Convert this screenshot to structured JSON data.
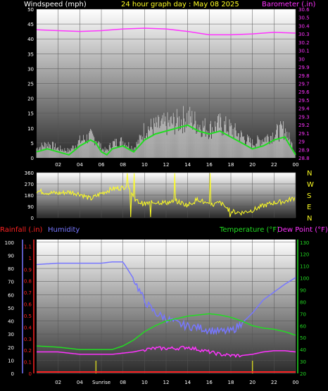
{
  "colors": {
    "background": "#000000",
    "windspeed": "#ffffff",
    "windgust": "#dddddd",
    "wind_avg": "#22dd22",
    "barometer": "#ff33ff",
    "direction": "#ffff22",
    "rainfall": "#ff2222",
    "humidity": "#7777ff",
    "temperature": "#22dd22",
    "dewpoint": "#ff33ff",
    "sunrise_line": "#cccc22",
    "title": "#ffff22"
  },
  "chart_data": [
    {
      "type": "line",
      "title": "24 hour graph day : May 08 2025",
      "ylabel": "Windspeed (mph)",
      "y2label": "Barometer (.in)",
      "x_tick_labels": [
        "02",
        "04",
        "06",
        "08",
        "10",
        "12",
        "14",
        "16",
        "18",
        "20",
        "22",
        "00"
      ],
      "y_tick_labels": [
        "0",
        "5",
        "10",
        "15",
        "20",
        "25",
        "30",
        "35",
        "40",
        "45",
        "50"
      ],
      "y2_tick_labels": [
        "28.8",
        "28.9",
        "29",
        "29.1",
        "29.2",
        "29.3",
        "29.4",
        "29.5",
        "29.6",
        "29.7",
        "29.8",
        "29.9",
        "30",
        "30.1",
        "30.2",
        "30.3",
        "30.4",
        "30.5",
        "30.6"
      ],
      "ylim": [
        0,
        50
      ],
      "y2lim": [
        28.8,
        30.6
      ],
      "grid": true,
      "series": [
        {
          "name": "Windspeed (mph)",
          "x": [
            0,
            1,
            2,
            3,
            4,
            5,
            5.5,
            6,
            6.5,
            7,
            8,
            9,
            9.5,
            10,
            11,
            12,
            13,
            14,
            15,
            16,
            17,
            18,
            19,
            20,
            21,
            22,
            23,
            24
          ],
          "values": [
            2,
            3,
            2,
            1,
            4,
            6,
            5,
            2,
            1,
            3,
            4,
            2,
            4,
            6,
            8,
            9,
            10,
            11,
            9,
            8,
            9,
            7,
            5,
            3,
            4,
            6,
            7,
            1
          ]
        },
        {
          "name": "Windgust",
          "x": [
            0,
            1,
            2,
            3,
            4,
            5,
            5.5,
            6,
            6.5,
            7,
            8,
            9,
            9.5,
            10,
            11,
            12,
            13,
            14,
            15,
            16,
            17,
            18,
            19,
            20,
            21,
            22,
            23,
            24
          ],
          "values": [
            4,
            6,
            4,
            3,
            7,
            9,
            8,
            4,
            3,
            6,
            7,
            4,
            7,
            12,
            13,
            14,
            15,
            17,
            14,
            12,
            14,
            12,
            9,
            6,
            8,
            10,
            12,
            2
          ]
        },
        {
          "name": "Barometer (.in)",
          "x": [
            0,
            2,
            4,
            6,
            8,
            10,
            12,
            14,
            16,
            18,
            20,
            22,
            24
          ],
          "values": [
            30.35,
            30.34,
            30.33,
            30.34,
            30.36,
            30.37,
            30.36,
            30.33,
            30.29,
            30.29,
            30.3,
            30.32,
            30.31
          ]
        }
      ]
    },
    {
      "type": "scatter",
      "ylabel": "Direction",
      "y_tick_labels": [
        "360",
        "270",
        "180",
        "90",
        "0"
      ],
      "right_labels": [
        "N",
        "W",
        "S",
        "E",
        "N"
      ],
      "ylim": [
        0,
        360
      ],
      "series": [
        {
          "name": "Wind Direction",
          "x": [
            0,
            1,
            2,
            3,
            4,
            5,
            6,
            7,
            8,
            8.5,
            9,
            10,
            11,
            12,
            13,
            14,
            15,
            16,
            17,
            18,
            19,
            20,
            21,
            22,
            23,
            24
          ],
          "values": [
            215,
            200,
            195,
            205,
            190,
            150,
            195,
            230,
            240,
            265,
            140,
            110,
            125,
            120,
            130,
            100,
            150,
            95,
            120,
            50,
            40,
            60,
            95,
            120,
            130,
            160
          ]
        }
      ]
    },
    {
      "type": "line",
      "ylabel": "Humidity",
      "y_left_label": "Rainfall (.in)",
      "y2label": "Temperature (°F)",
      "y2label_b": "Dew Point (°F)",
      "x_tick_labels": [
        "02",
        "04",
        "Sunrise",
        "08",
        "10",
        "12",
        "14",
        "16",
        "18",
        "20",
        "22",
        "00"
      ],
      "humidity_ticks": [
        "0",
        "10",
        "20",
        "30",
        "40",
        "50",
        "60",
        "70",
        "80",
        "90",
        "100"
      ],
      "rain_ticks": [
        "0",
        "0.1",
        "0.2",
        "0.3",
        "0.4",
        "0.5",
        "0.6",
        "0.7",
        "0.8",
        "0.9",
        "1",
        "1.1"
      ],
      "temp_ticks": [
        "20",
        "30",
        "40",
        "50",
        "60",
        "70",
        "80",
        "90",
        "100",
        "110",
        "120",
        "130"
      ],
      "humidity_lim": [
        0,
        100
      ],
      "temp_lim": [
        20,
        130
      ],
      "series": [
        {
          "name": "Humidity",
          "x": [
            0,
            2,
            4,
            6,
            7,
            8,
            9,
            10,
            11,
            12,
            13,
            14,
            15,
            16,
            17,
            18,
            19,
            20,
            21,
            22,
            23,
            24
          ],
          "values": [
            83,
            84,
            84,
            84,
            85,
            85,
            72,
            55,
            46,
            42,
            38,
            36,
            35,
            33,
            32,
            32,
            38,
            46,
            56,
            62,
            68,
            73
          ]
        },
        {
          "name": "Temperature (°F)",
          "x": [
            0,
            2,
            4,
            6,
            7,
            8,
            9,
            10,
            11,
            12,
            13,
            14,
            15,
            16,
            17,
            18,
            19,
            20,
            21,
            22,
            23,
            24
          ],
          "values": [
            43,
            42,
            40,
            40,
            40,
            43,
            48,
            55,
            60,
            64,
            66,
            68,
            69,
            70,
            69,
            67,
            64,
            60,
            58,
            57,
            55,
            52
          ]
        },
        {
          "name": "Dew Point (°F)",
          "x": [
            0,
            2,
            4,
            6,
            7,
            8,
            9,
            10,
            11,
            12,
            13,
            14,
            15,
            16,
            17,
            18,
            19,
            20,
            21,
            22,
            23,
            24
          ],
          "values": [
            38,
            38,
            36,
            36,
            36,
            37,
            38,
            40,
            41,
            41,
            41,
            42,
            40,
            38,
            36,
            35,
            35,
            36,
            38,
            39,
            39,
            38
          ]
        },
        {
          "name": "Rainfall (.in)",
          "x": [
            0,
            24
          ],
          "values": [
            0,
            0
          ]
        }
      ],
      "markers": [
        {
          "label": "Sunrise",
          "x": 5.5
        },
        {
          "label": "Sunset",
          "x": 20
        }
      ]
    }
  ]
}
